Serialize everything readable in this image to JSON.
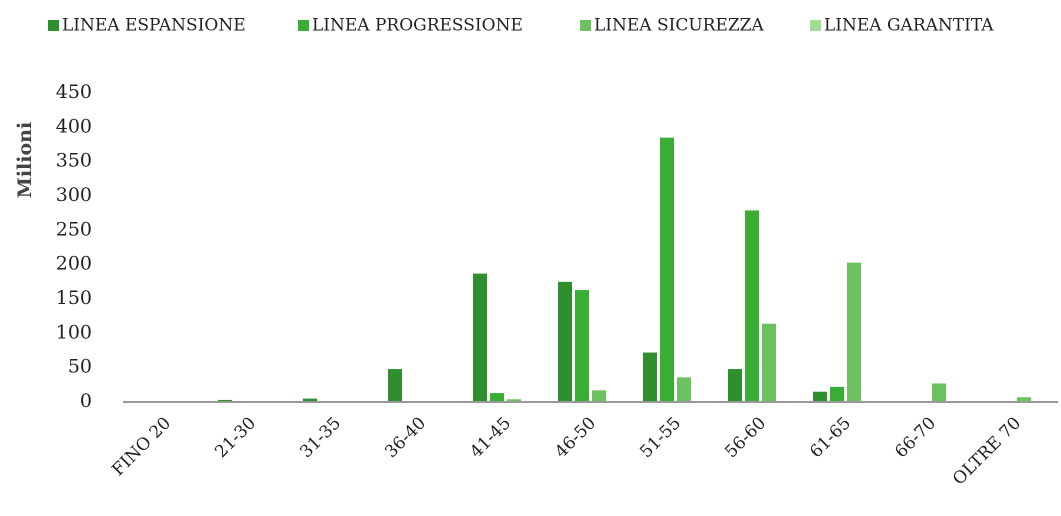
{
  "chart_data": {
    "type": "bar",
    "y_label": "Milioni",
    "categories": [
      "FINO 20",
      "21-30",
      "31-35",
      "36-40",
      "41-45",
      "46-50",
      "51-55",
      "56-60",
      "61-65",
      "66-70",
      "OLTRE 70"
    ],
    "series": [
      {
        "name": "LINEA ESPANSIONE",
        "color": "#2f8f2f",
        "values": [
          0,
          3,
          5,
          48,
          187,
          175,
          72,
          48,
          15,
          0,
          0
        ]
      },
      {
        "name": "LINEA PROGRESSIONE",
        "color": "#3aad34",
        "values": [
          0,
          0,
          0,
          0,
          13,
          163,
          385,
          279,
          22,
          0,
          0
        ]
      },
      {
        "name": "LINEA SICUREZZA",
        "color": "#6cc25e",
        "values": [
          0,
          0,
          0,
          0,
          4,
          17,
          36,
          114,
          203,
          27,
          7
        ]
      },
      {
        "name": "LINEA GARANTITA",
        "color": "#a3dc93",
        "values": [
          0,
          0,
          0,
          0,
          0,
          0,
          0,
          0,
          0,
          0,
          0
        ]
      }
    ],
    "ylim": [
      0,
      450
    ],
    "yticks": [
      0,
      50,
      100,
      150,
      200,
      250,
      300,
      350,
      400,
      450
    ],
    "grid": false,
    "legend": "top"
  }
}
